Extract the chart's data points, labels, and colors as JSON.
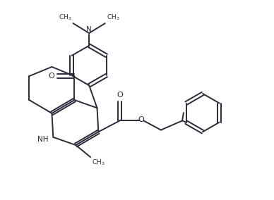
{
  "bg_color": "#ffffff",
  "line_color": "#2a2a3a",
  "line_width": 1.4,
  "figsize": [
    3.88,
    2.84
  ],
  "dpi": 100,
  "xlim": [
    0,
    10
  ],
  "ylim": [
    0,
    7.5
  ]
}
